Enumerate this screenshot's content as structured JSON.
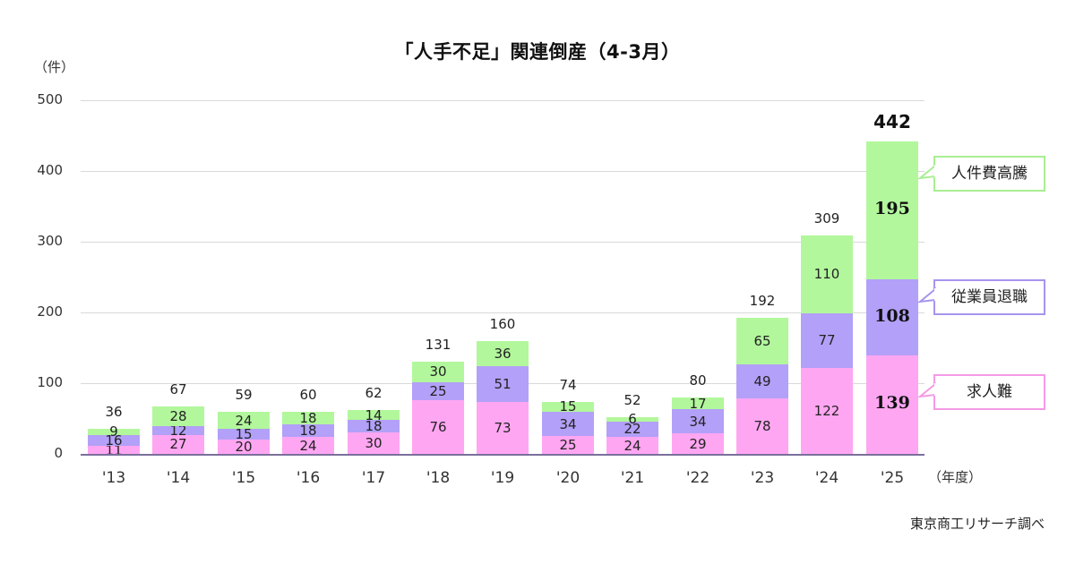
{
  "chart_data": {
    "type": "bar",
    "stacked": true,
    "title": "「人手不足」関連倒産（4-3月）",
    "ylabel": "（件）",
    "xlabel": "（年度）",
    "ylim": [
      0,
      500
    ],
    "yticks": [
      0,
      100,
      200,
      300,
      400,
      500
    ],
    "grid": true,
    "legend_position": "callouts-right",
    "categories": [
      "'13",
      "'14",
      "'15",
      "'16",
      "'17",
      "'18",
      "'19",
      "'20",
      "'21",
      "'22",
      "'23",
      "'24",
      "'25"
    ],
    "series": [
      {
        "name": "求人難",
        "color": "#ffa6f2",
        "values": [
          11,
          27,
          20,
          24,
          30,
          76,
          73,
          25,
          24,
          29,
          78,
          122,
          139
        ]
      },
      {
        "name": "従業員退職",
        "color": "#b3a0f8",
        "values": [
          16,
          12,
          15,
          18,
          18,
          25,
          51,
          34,
          22,
          34,
          49,
          77,
          108
        ]
      },
      {
        "name": "人件費高騰",
        "color": "#b2f79c",
        "values": [
          9,
          28,
          24,
          18,
          14,
          30,
          36,
          15,
          6,
          17,
          65,
          110,
          195
        ]
      }
    ],
    "totals": [
      36,
      67,
      59,
      60,
      62,
      131,
      160,
      74,
      52,
      80,
      192,
      309,
      442
    ],
    "source": "東京商工リサーチ調べ"
  },
  "labels": {
    "title": "「人手不足」関連倒産（4-3月）",
    "unit_y": "（件）",
    "unit_x": "（年度）",
    "source": "東京商工リサーチ調べ",
    "callout_green": "人件費高騰",
    "callout_purple": "従業員退職",
    "callout_pink": "求人難"
  }
}
